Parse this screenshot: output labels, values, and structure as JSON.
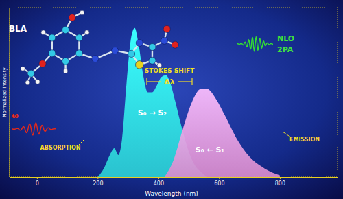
{
  "chart_data": {
    "type": "area",
    "x_label": "Wavelength (nm)",
    "y_label": "Normalized Intensity",
    "xlim": [
      -90,
      990
    ],
    "xticks": [
      0,
      200,
      400,
      600,
      800
    ],
    "ylim": [
      0,
      1
    ],
    "tick_labels": "x",
    "grid": false,
    "series": [
      {
        "name": "ABSORPTION",
        "color": "#2fd8e6",
        "x": [
          200,
          220,
          240,
          255,
          268,
          280,
          295,
          310,
          322,
          335,
          350,
          365,
          380,
          395,
          410,
          425,
          440,
          455,
          470,
          485,
          500,
          520,
          540,
          560
        ],
        "values": [
          0,
          0.05,
          0.13,
          0.17,
          0.13,
          0.22,
          0.55,
          0.82,
          0.88,
          0.78,
          0.6,
          0.5,
          0.5,
          0.54,
          0.59,
          0.6,
          0.55,
          0.45,
          0.34,
          0.24,
          0.15,
          0.07,
          0.03,
          0
        ]
      },
      {
        "name": "EMISSION",
        "color": "#f29be4",
        "x": [
          420,
          450,
          480,
          510,
          540,
          560,
          590,
          620,
          660,
          700,
          750,
          800
        ],
        "values": [
          0,
          0.1,
          0.28,
          0.44,
          0.52,
          0.52,
          0.46,
          0.36,
          0.22,
          0.12,
          0.05,
          0.01
        ]
      }
    ],
    "annotations": [
      "BLA",
      "NLO",
      "2PA",
      "STOKES SHIFT",
      "Δλ",
      "S₀ → S₂",
      "S₀ ← S₁",
      "ω"
    ]
  }
}
